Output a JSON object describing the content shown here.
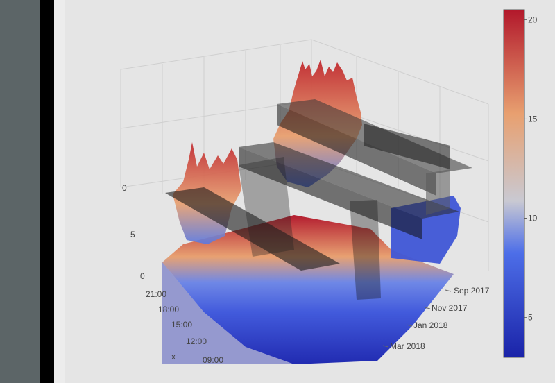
{
  "chart_data": {
    "type": "surface",
    "title": "",
    "z_axis": {
      "ticks": [
        "0",
        "5",
        "0"
      ]
    },
    "y_axis": {
      "label": "x",
      "ticks": [
        "21:00",
        "18:00",
        "15:00",
        "12:00",
        "09:00"
      ]
    },
    "x_axis": {
      "ticks": [
        "Sep 2017",
        "Nov 2017",
        "Jan 2018",
        "Mar 2018"
      ]
    },
    "colorbar": {
      "range": [
        3,
        20.5
      ],
      "ticks": [
        {
          "value": 20,
          "label": "20"
        },
        {
          "value": 15,
          "label": "15"
        },
        {
          "value": 10,
          "label": "10"
        },
        {
          "value": 5,
          "label": "5"
        }
      ],
      "colors": [
        "#1a23a8",
        "#4d6ee8",
        "#c9c9d2",
        "#e8a070",
        "#b2182b"
      ]
    },
    "grid": true
  }
}
